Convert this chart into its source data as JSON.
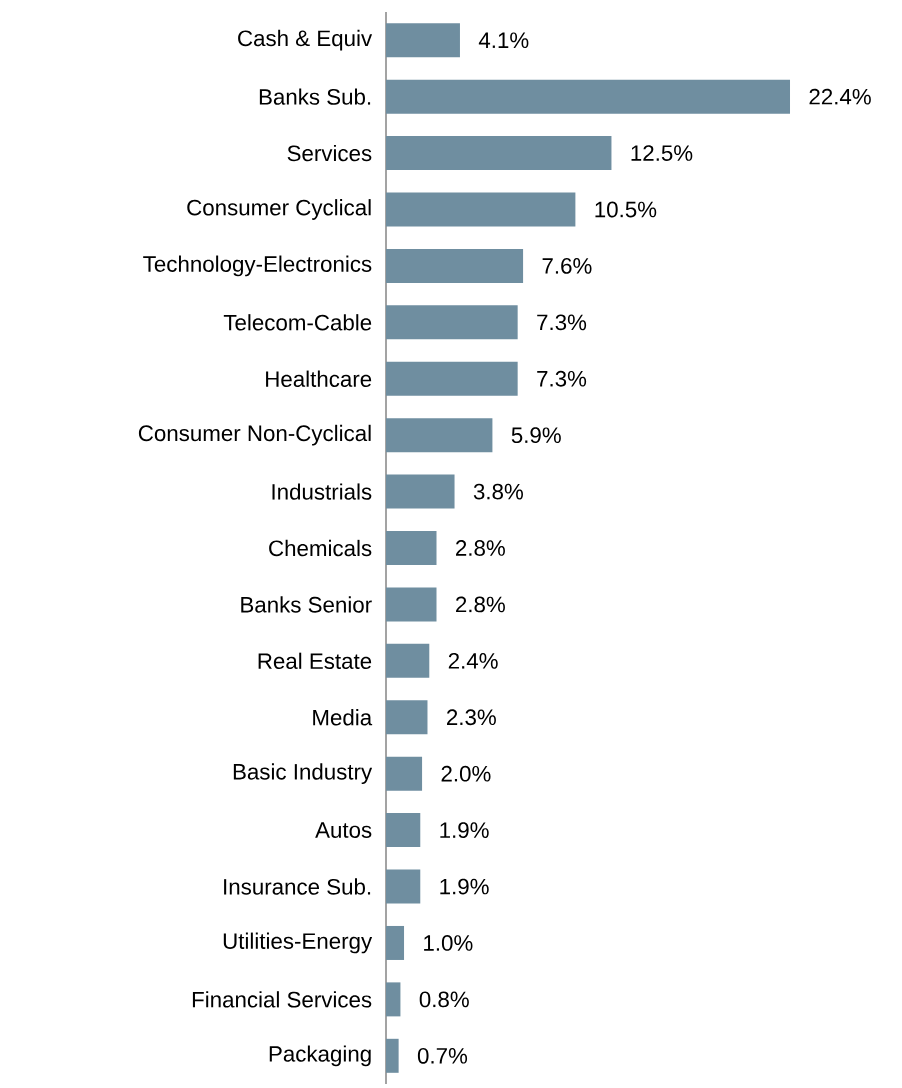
{
  "chart_data": {
    "type": "bar",
    "orientation": "horizontal",
    "color": "#6f8ea0",
    "categories": [
      "Cash & Equiv",
      "Banks Sub.",
      "Services",
      "Consumer Cyclical",
      "Technology-Electronics",
      "Telecom-Cable",
      "Healthcare",
      "Consumer Non-Cyclical",
      "Industrials",
      "Chemicals",
      "Banks Senior",
      "Real Estate",
      "Media",
      "Basic Industry",
      "Autos",
      "Insurance Sub.",
      "Utilities-Energy",
      "Financial Services",
      "Packaging"
    ],
    "values": [
      4.1,
      22.4,
      12.5,
      10.5,
      7.6,
      7.3,
      7.3,
      5.9,
      3.8,
      2.8,
      2.8,
      2.4,
      2.3,
      2.0,
      1.9,
      1.9,
      1.0,
      0.8,
      0.7
    ],
    "value_labels": [
      "4.1%",
      "22.4%",
      "12.5%",
      "10.5%",
      "7.6%",
      "7.3%",
      "7.3%",
      "5.9%",
      "3.8%",
      "2.8%",
      "2.8%",
      "2.4%",
      "2.3%",
      "2.0%",
      "1.9%",
      "1.9%",
      "1.0%",
      "0.8%",
      "0.7%"
    ]
  }
}
